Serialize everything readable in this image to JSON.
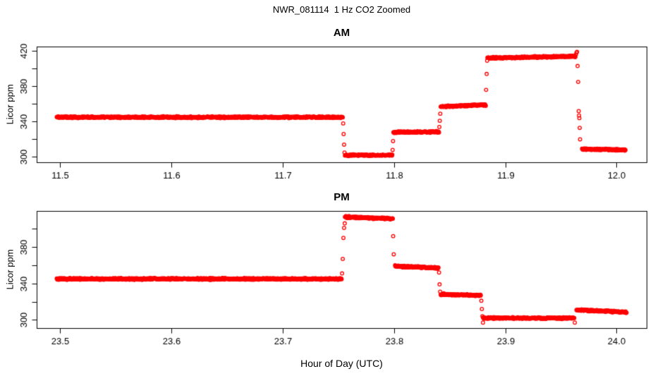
{
  "title": "NWR_081114  1 Hz CO2 Zoomed",
  "xlabel": "Hour of Day (UTC)",
  "colors": {
    "points": "#FF0000",
    "axis": "#000000",
    "background": "#FFFFFF"
  },
  "chart_data": [
    {
      "type": "scatter",
      "title": "AM",
      "ylabel": "Licor ppm",
      "marker": "open-circle",
      "sample_rate_hz": 1,
      "xlim": [
        11.479,
        12.027
      ],
      "ylim": [
        294,
        425
      ],
      "xticks": [
        {
          "v": 11.5,
          "label": "11.5"
        },
        {
          "v": 11.6,
          "label": "11.6"
        },
        {
          "v": 11.7,
          "label": "11.7"
        },
        {
          "v": 11.8,
          "label": "11.8"
        },
        {
          "v": 11.9,
          "label": "11.9"
        },
        {
          "v": 12.0,
          "label": "12.0"
        }
      ],
      "yticks": [
        {
          "v": 300,
          "label": "300"
        },
        {
          "v": 320,
          "label": ""
        },
        {
          "v": 340,
          "label": "340"
        },
        {
          "v": 360,
          "label": ""
        },
        {
          "v": 380,
          "label": "380"
        },
        {
          "v": 400,
          "label": ""
        },
        {
          "v": 420,
          "label": "420"
        }
      ],
      "segments": [
        {
          "t0": 11.497,
          "t1": 11.754,
          "v0": 345,
          "v1": 345
        },
        {
          "t0": 11.756,
          "t1": 11.7985,
          "v0": 302,
          "v1": 302
        },
        {
          "t0": 11.7995,
          "t1": 11.8405,
          "v0": 328,
          "v1": 328.5
        },
        {
          "t0": 11.842,
          "t1": 11.8825,
          "v0": 357,
          "v1": 359
        },
        {
          "t0": 11.884,
          "t1": 11.963,
          "v0": 412,
          "v1": 414
        },
        {
          "t0": 11.969,
          "t1": 12.008,
          "v0": 309,
          "v1": 308
        }
      ],
      "transition_points": [
        [
          11.7544,
          338
        ],
        [
          11.7548,
          326
        ],
        [
          11.7552,
          314
        ],
        [
          11.7556,
          305
        ],
        [
          11.7988,
          308
        ],
        [
          11.7992,
          318
        ],
        [
          11.8408,
          334
        ],
        [
          11.8412,
          341
        ],
        [
          11.8416,
          349
        ],
        [
          11.8828,
          376
        ],
        [
          11.8833,
          394
        ],
        [
          11.8837,
          409
        ],
        [
          11.9635,
          416
        ],
        [
          11.964,
          418
        ],
        [
          11.9645,
          419
        ],
        [
          11.965,
          403
        ],
        [
          11.9655,
          385
        ],
        [
          11.966,
          352
        ],
        [
          11.9663,
          347
        ],
        [
          11.9666,
          344
        ],
        [
          11.9669,
          333
        ],
        [
          11.9672,
          320
        ]
      ]
    },
    {
      "type": "scatter",
      "title": "PM",
      "ylabel": "Licor ppm",
      "marker": "open-circle",
      "sample_rate_hz": 1,
      "xlim": [
        23.479,
        24.027
      ],
      "ylim": [
        291,
        419.6
      ],
      "xticks": [
        {
          "v": 23.5,
          "label": "23.5"
        },
        {
          "v": 23.6,
          "label": "23.6"
        },
        {
          "v": 23.7,
          "label": "23.7"
        },
        {
          "v": 23.8,
          "label": "23.8"
        },
        {
          "v": 23.9,
          "label": "23.9"
        },
        {
          "v": 24.0,
          "label": "24.0"
        }
      ],
      "yticks": [
        {
          "v": 300,
          "label": "300"
        },
        {
          "v": 320,
          "label": ""
        },
        {
          "v": 340,
          "label": "340"
        },
        {
          "v": 360,
          "label": ""
        },
        {
          "v": 380,
          "label": "380"
        },
        {
          "v": 400,
          "label": ""
        }
      ],
      "segments": [
        {
          "t0": 23.497,
          "t1": 23.753,
          "v0": 345,
          "v1": 345
        },
        {
          "t0": 23.756,
          "t1": 23.799,
          "v0": 413,
          "v1": 411
        },
        {
          "t0": 23.801,
          "t1": 23.84,
          "v0": 359,
          "v1": 357
        },
        {
          "t0": 23.842,
          "t1": 23.878,
          "v0": 328,
          "v1": 327
        },
        {
          "t0": 23.88,
          "t1": 23.962,
          "v0": 302,
          "v1": 302
        },
        {
          "t0": 23.964,
          "t1": 24.009,
          "v0": 311,
          "v1": 308.5
        }
      ],
      "transition_points": [
        [
          23.7534,
          351
        ],
        [
          23.754,
          367
        ],
        [
          23.7546,
          390
        ],
        [
          23.7552,
          401
        ],
        [
          23.7558,
          406
        ],
        [
          23.7993,
          392
        ],
        [
          23.7998,
          372
        ],
        [
          23.8405,
          352
        ],
        [
          23.841,
          339
        ],
        [
          23.8415,
          331
        ],
        [
          23.8785,
          321
        ],
        [
          23.879,
          312
        ],
        [
          23.8795,
          304
        ],
        [
          23.88,
          297
        ],
        [
          23.9625,
          297
        ]
      ]
    }
  ]
}
